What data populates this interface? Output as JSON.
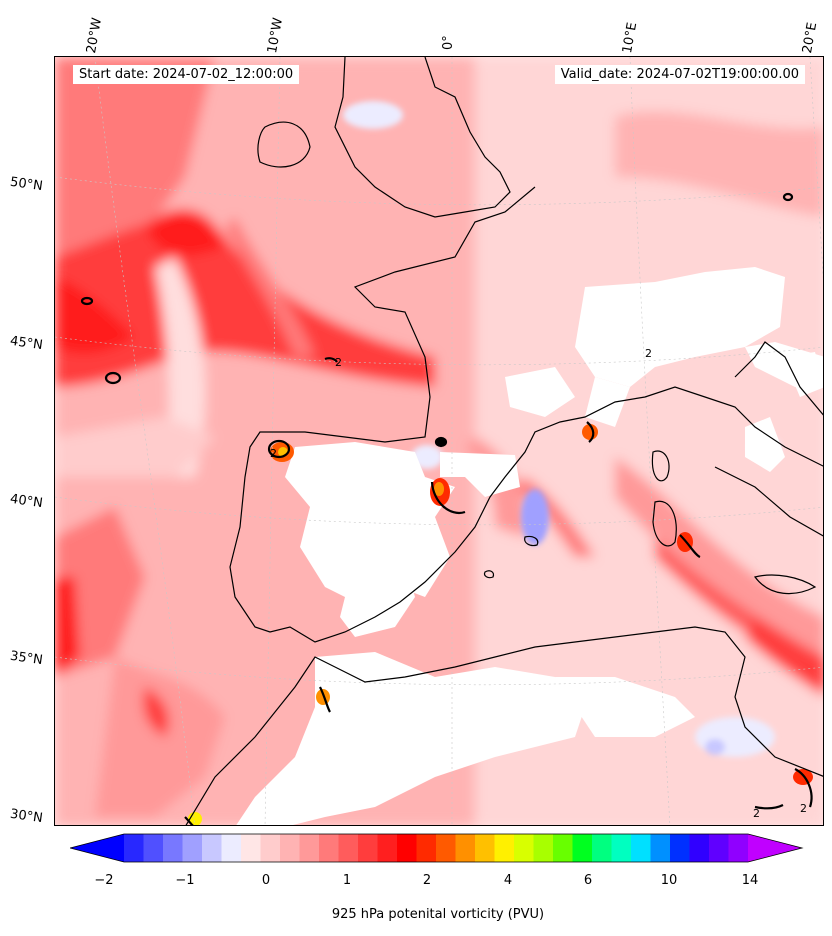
{
  "map": {
    "header": {
      "start_date": "Start date: 2024-07-02_12:00:00",
      "valid_date": "Valid_date: 2024-07-02T19:00:00.00"
    },
    "longitude_labels": [
      "20°W",
      "10°W",
      "0°",
      "10°E",
      "20°E"
    ],
    "latitude_labels": [
      "50°N",
      "45°N",
      "40°N",
      "35°N",
      "30°N"
    ],
    "contour_label": "2",
    "colors": {
      "ocean_background": "#ffe6e6",
      "high_pv_red": "#ff1f1f",
      "medium_pv": "#ff7a7a",
      "low_pv": "#ffb3b3",
      "missing_white": "#ffffff",
      "negative_blue": "#dde0ff",
      "coastline": "#000000"
    }
  },
  "colorbar": {
    "tick_labels": [
      "−2",
      "−1",
      "0",
      "1",
      "2",
      "4",
      "6",
      "10",
      "14"
    ],
    "title": "925 hPa potenital vorticity (PVU)",
    "colors": [
      "#0000ff",
      "#2828ff",
      "#5050ff",
      "#7878ff",
      "#a0a0ff",
      "#c8c8ff",
      "#ececff",
      "#ffe6e6",
      "#ffcccc",
      "#ffb3b3",
      "#ff9999",
      "#ff7a7a",
      "#ff5c5c",
      "#ff3d3d",
      "#ff1f1f",
      "#ff0000",
      "#ff2a00",
      "#ff5a00",
      "#ff9000",
      "#ffc000",
      "#fff000",
      "#d8ff00",
      "#a8ff00",
      "#68ff00",
      "#00ff20",
      "#00ff80",
      "#00ffc0",
      "#00e0ff",
      "#0090ff",
      "#0030ff",
      "#3000ff",
      "#6000ff",
      "#9000ff",
      "#c000ff"
    ]
  }
}
